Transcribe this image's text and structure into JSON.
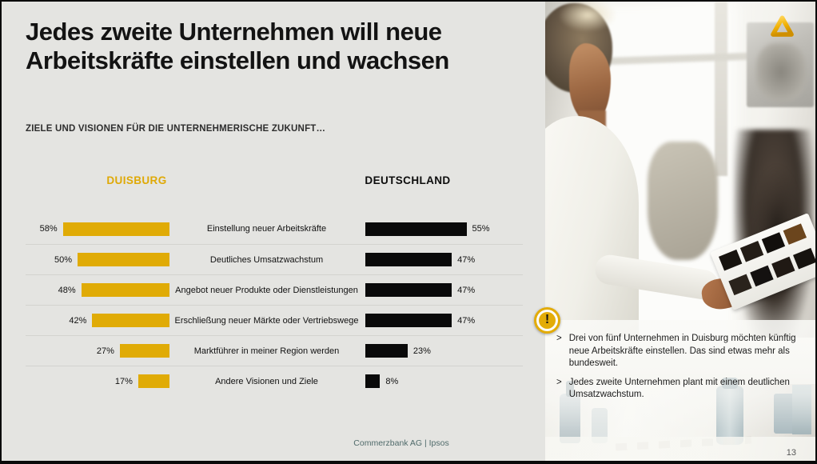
{
  "slide": {
    "title_line1": "Jedes zweite Unternehmen will neue",
    "title_line2": "Arbeitskräfte einstellen und wachsen",
    "subtitle": "ZIELE UND VISIONEN FÜR DIE UNTERNEHMERISCHE ZUKUNFT…",
    "footer": "Commerzbank AG | Ipsos",
    "page_number": "13"
  },
  "chart_data": {
    "type": "bar",
    "orientation": "horizontal-mirrored",
    "categories": [
      "Einstellung neuer Arbeitskräfte",
      "Deutliches Umsatzwachstum",
      "Angebot neuer Produkte oder Dienstleistungen",
      "Erschließung neuer Märkte oder Vertriebswege",
      "Marktführer in meiner Region werden",
      "Andere Visionen und Ziele"
    ],
    "series": [
      {
        "name": "DUISBURG",
        "color": "#e0ab06",
        "values": [
          58,
          50,
          48,
          42,
          27,
          17
        ]
      },
      {
        "name": "DEUTSCHLAND",
        "color": "#0a0a0a",
        "values": [
          55,
          47,
          47,
          47,
          23,
          8
        ]
      }
    ],
    "value_suffix": "%",
    "xlim": [
      0,
      60
    ],
    "grid": false,
    "legend_position": "column-headers"
  },
  "callouts": {
    "bullet_char": ">",
    "icon_glyph": "!",
    "items": [
      "Drei von fünf Unternehmen in Duisburg möchten künftig neue Arbeitskräfte einstellen. Das sind etwas mehr als bundesweit.",
      "Jedes zweite Unternehmen plant mit einem deutlichen Umsatzwachstum."
    ]
  },
  "brand": {
    "logo_name": "commerzbank-logo",
    "brand_yellow": "#e0ab06"
  }
}
